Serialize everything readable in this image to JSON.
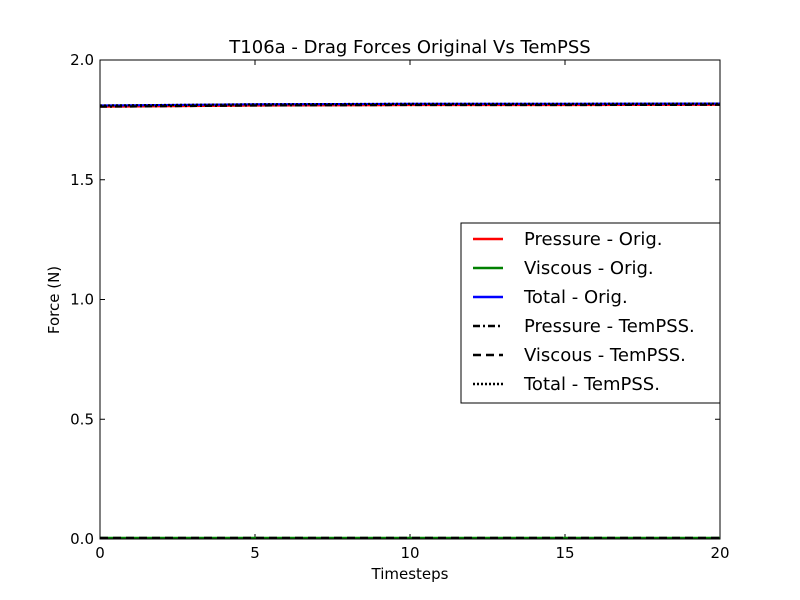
{
  "chart_data": {
    "type": "line",
    "title": "T106a - Drag Forces Original Vs TemPSS",
    "xlabel": "Timesteps",
    "ylabel": "Force (N)",
    "xlim": [
      0,
      20
    ],
    "ylim": [
      0,
      2.0
    ],
    "xticks": [
      "0",
      "5",
      "10",
      "15",
      "20"
    ],
    "yticks": [
      "0.0",
      "0.5",
      "1.0",
      "1.5",
      "2.0"
    ],
    "x": [
      0,
      5,
      10,
      15,
      20
    ],
    "series": [
      {
        "name": "Pressure - Orig.",
        "color": "#ff0000",
        "style": "solid",
        "values": [
          1.805,
          1.81,
          1.812,
          1.812,
          1.813
        ]
      },
      {
        "name": "Viscous - Orig.",
        "color": "#008000",
        "style": "solid",
        "values": [
          0.005,
          0.005,
          0.005,
          0.005,
          0.005
        ]
      },
      {
        "name": "Total - Orig.",
        "color": "#0000ff",
        "style": "solid",
        "values": [
          1.81,
          1.815,
          1.817,
          1.817,
          1.818
        ]
      },
      {
        "name": "Pressure - TemPSS.",
        "color": "#000000",
        "style": "dashdot",
        "values": [
          1.805,
          1.81,
          1.812,
          1.812,
          1.813
        ]
      },
      {
        "name": "Viscous - TemPSS.",
        "color": "#000000",
        "style": "dashed",
        "values": [
          0.005,
          0.005,
          0.005,
          0.005,
          0.005
        ]
      },
      {
        "name": "Total - TemPSS.",
        "color": "#000000",
        "style": "dotted",
        "values": [
          1.81,
          1.815,
          1.817,
          1.817,
          1.818
        ]
      }
    ],
    "grid": false,
    "legend_position": "center-right"
  }
}
